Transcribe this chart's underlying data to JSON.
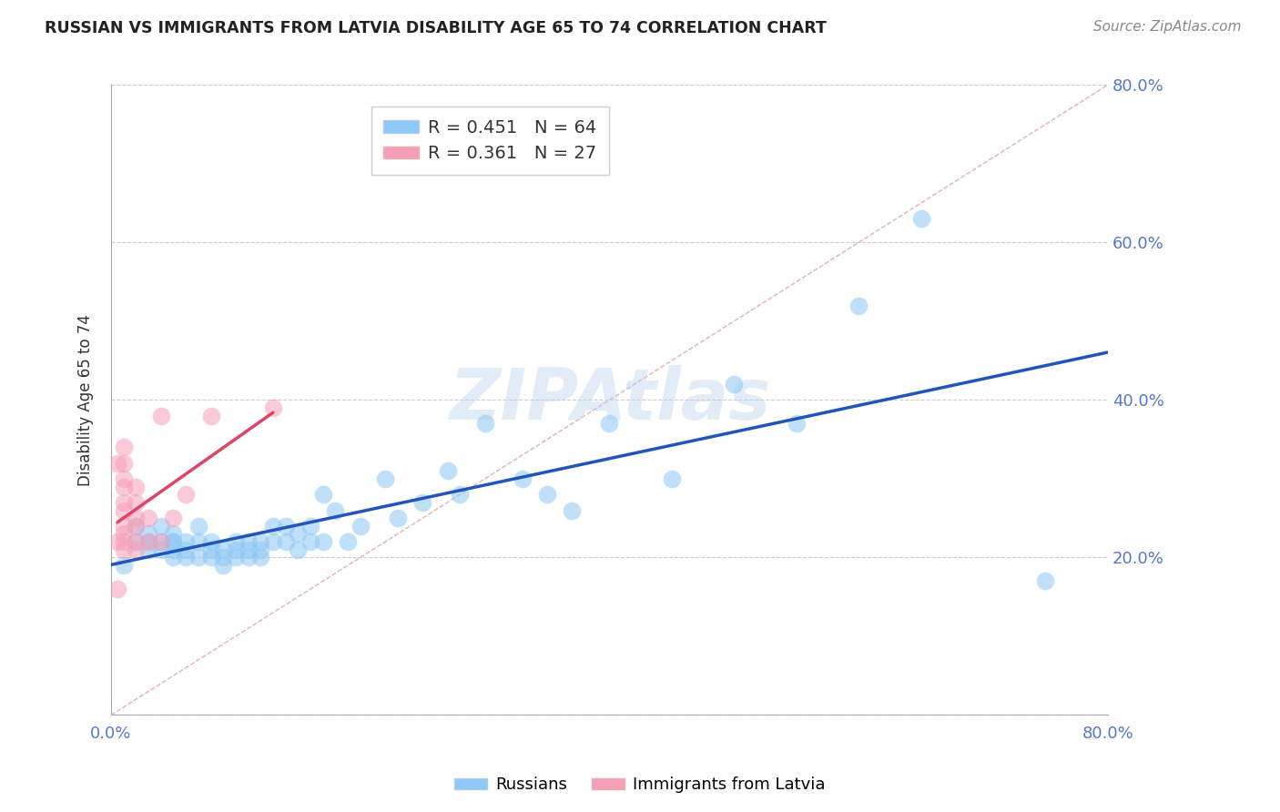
{
  "title": "RUSSIAN VS IMMIGRANTS FROM LATVIA DISABILITY AGE 65 TO 74 CORRELATION CHART",
  "source": "Source: ZipAtlas.com",
  "ylabel": "Disability Age 65 to 74",
  "xlim": [
    0.0,
    0.8
  ],
  "ylim": [
    0.0,
    0.8
  ],
  "legend_r1": "R = 0.451",
  "legend_n1": "N = 64",
  "legend_r2": "R = 0.361",
  "legend_n2": "N = 27",
  "color_russian": "#8DC8F5",
  "color_latvia": "#F5A0B8",
  "color_trend_russian": "#2255BB",
  "color_trend_latvia": "#DD4466",
  "color_diagonal": "#CCAAAA",
  "color_axis_text": "#5577CC",
  "watermark": "ZIPAtlas",
  "russians_x": [
    0.01,
    0.02,
    0.02,
    0.03,
    0.03,
    0.03,
    0.04,
    0.04,
    0.04,
    0.05,
    0.05,
    0.05,
    0.05,
    0.05,
    0.06,
    0.06,
    0.06,
    0.07,
    0.07,
    0.07,
    0.08,
    0.08,
    0.08,
    0.09,
    0.09,
    0.09,
    0.1,
    0.1,
    0.1,
    0.11,
    0.11,
    0.11,
    0.12,
    0.12,
    0.12,
    0.13,
    0.13,
    0.14,
    0.14,
    0.15,
    0.15,
    0.16,
    0.16,
    0.17,
    0.17,
    0.18,
    0.19,
    0.2,
    0.22,
    0.23,
    0.25,
    0.27,
    0.28,
    0.3,
    0.33,
    0.35,
    0.37,
    0.4,
    0.45,
    0.5,
    0.55,
    0.6,
    0.65,
    0.75
  ],
  "russians_y": [
    0.19,
    0.22,
    0.24,
    0.22,
    0.23,
    0.21,
    0.21,
    0.22,
    0.24,
    0.2,
    0.21,
    0.22,
    0.22,
    0.23,
    0.2,
    0.21,
    0.22,
    0.2,
    0.22,
    0.24,
    0.2,
    0.21,
    0.22,
    0.19,
    0.2,
    0.21,
    0.2,
    0.21,
    0.22,
    0.2,
    0.21,
    0.22,
    0.2,
    0.21,
    0.22,
    0.22,
    0.24,
    0.22,
    0.24,
    0.21,
    0.23,
    0.22,
    0.24,
    0.22,
    0.28,
    0.26,
    0.22,
    0.24,
    0.3,
    0.25,
    0.27,
    0.31,
    0.28,
    0.37,
    0.3,
    0.28,
    0.26,
    0.37,
    0.3,
    0.42,
    0.37,
    0.52,
    0.63,
    0.17
  ],
  "latvia_x": [
    0.005,
    0.005,
    0.005,
    0.01,
    0.01,
    0.01,
    0.01,
    0.01,
    0.01,
    0.01,
    0.01,
    0.01,
    0.01,
    0.02,
    0.02,
    0.02,
    0.02,
    0.02,
    0.02,
    0.03,
    0.03,
    0.04,
    0.04,
    0.05,
    0.06,
    0.08,
    0.13
  ],
  "latvia_y": [
    0.16,
    0.22,
    0.32,
    0.21,
    0.22,
    0.23,
    0.24,
    0.26,
    0.27,
    0.29,
    0.3,
    0.32,
    0.34,
    0.21,
    0.22,
    0.24,
    0.25,
    0.27,
    0.29,
    0.22,
    0.25,
    0.22,
    0.38,
    0.25,
    0.28,
    0.38,
    0.39
  ]
}
